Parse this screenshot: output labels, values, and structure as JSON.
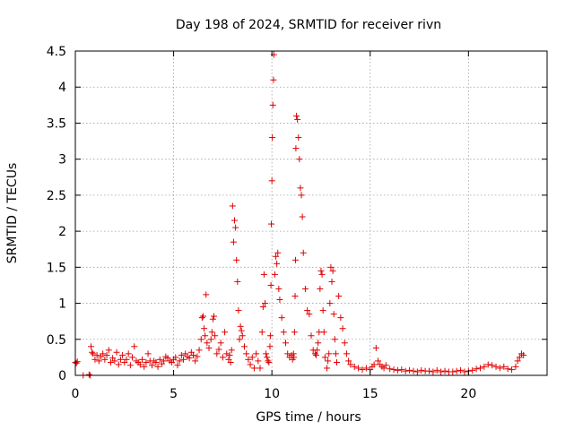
{
  "chart_data": {
    "type": "scatter",
    "title": "Day 198 of 2024, SRMTID for receiver rivn",
    "xlabel": "GPS time / hours",
    "ylabel": "SRMTID / TECUs",
    "xlim": [
      0,
      24
    ],
    "ylim": [
      0,
      4.5
    ],
    "xticks": [
      0,
      5,
      10,
      15,
      20
    ],
    "yticks": [
      0,
      0.5,
      1,
      1.5,
      2,
      2.5,
      3,
      3.5,
      4,
      4.5
    ],
    "xtick_labels": [
      "0",
      "5",
      "10",
      "15",
      "20"
    ],
    "ytick_labels": [
      "0",
      "0.5",
      "1",
      "1.5",
      "2",
      "2.5",
      "3",
      "3.5",
      "4",
      "4.5"
    ],
    "grid": true,
    "marker": "+",
    "color": "#e00000",
    "series": [
      {
        "name": "SRMTID",
        "x": [
          0.0,
          0.05,
          0.1,
          0.4,
          0.7,
          0.75,
          0.8,
          0.85,
          0.9,
          1.0,
          1.1,
          1.2,
          1.3,
          1.4,
          1.5,
          1.6,
          1.7,
          1.8,
          1.9,
          2.0,
          2.1,
          2.2,
          2.3,
          2.4,
          2.5,
          2.6,
          2.7,
          2.8,
          2.9,
          3.0,
          3.1,
          3.2,
          3.3,
          3.4,
          3.5,
          3.6,
          3.7,
          3.8,
          3.9,
          4.0,
          4.1,
          4.2,
          4.3,
          4.4,
          4.5,
          4.6,
          4.7,
          4.8,
          4.9,
          5.0,
          5.1,
          5.2,
          5.3,
          5.4,
          5.5,
          5.6,
          5.7,
          5.8,
          5.9,
          6.0,
          6.1,
          6.2,
          6.3,
          6.4,
          6.45,
          6.5,
          6.55,
          6.6,
          6.65,
          6.7,
          6.8,
          6.9,
          6.95,
          7.0,
          7.05,
          7.1,
          7.2,
          7.3,
          7.4,
          7.5,
          7.6,
          7.7,
          7.8,
          7.85,
          7.9,
          7.95,
          8.0,
          8.05,
          8.1,
          8.15,
          8.2,
          8.25,
          8.3,
          8.35,
          8.4,
          8.45,
          8.5,
          8.6,
          8.7,
          8.8,
          8.9,
          9.0,
          9.1,
          9.2,
          9.3,
          9.4,
          9.5,
          9.55,
          9.6,
          9.65,
          9.7,
          9.75,
          9.8,
          9.85,
          9.9,
          9.92,
          9.95,
          9.97,
          10.0,
          10.02,
          10.05,
          10.08,
          10.1,
          10.15,
          10.2,
          10.25,
          10.3,
          10.35,
          10.4,
          10.5,
          10.6,
          10.7,
          10.8,
          10.9,
          11.0,
          11.05,
          11.1,
          11.12,
          11.15,
          11.18,
          11.2,
          11.22,
          11.25,
          11.3,
          11.35,
          11.4,
          11.45,
          11.5,
          11.55,
          11.6,
          11.7,
          11.8,
          11.9,
          12.0,
          12.1,
          12.2,
          12.25,
          12.3,
          12.35,
          12.4,
          12.45,
          12.5,
          12.55,
          12.6,
          12.65,
          12.7,
          12.8,
          12.85,
          12.9,
          12.95,
          13.0,
          13.05,
          13.1,
          13.15,
          13.2,
          13.25,
          13.3,
          13.4,
          13.5,
          13.6,
          13.7,
          13.8,
          13.9,
          14.0,
          14.2,
          14.4,
          14.6,
          14.8,
          15.0,
          15.1,
          15.2,
          15.3,
          15.4,
          15.5,
          15.6,
          15.7,
          15.8,
          16.0,
          16.2,
          16.4,
          16.6,
          16.8,
          17.0,
          17.2,
          17.4,
          17.6,
          17.8,
          18.0,
          18.2,
          18.4,
          18.6,
          18.8,
          19.0,
          19.2,
          19.4,
          19.6,
          19.8,
          20.0,
          20.2,
          20.4,
          20.6,
          20.8,
          21.0,
          21.2,
          21.4,
          21.6,
          21.8,
          22.0,
          22.2,
          22.4,
          22.5,
          22.6,
          22.7,
          22.8
        ],
        "y": [
          0.18,
          0.17,
          0.19,
          0.0,
          0.01,
          0.0,
          0.4,
          0.32,
          0.3,
          0.22,
          0.28,
          0.2,
          0.26,
          0.3,
          0.22,
          0.28,
          0.35,
          0.18,
          0.24,
          0.2,
          0.32,
          0.15,
          0.22,
          0.28,
          0.18,
          0.22,
          0.3,
          0.14,
          0.25,
          0.4,
          0.2,
          0.18,
          0.15,
          0.22,
          0.12,
          0.18,
          0.3,
          0.2,
          0.14,
          0.2,
          0.18,
          0.12,
          0.22,
          0.16,
          0.2,
          0.26,
          0.24,
          0.2,
          0.18,
          0.22,
          0.25,
          0.14,
          0.2,
          0.28,
          0.22,
          0.3,
          0.26,
          0.24,
          0.32,
          0.28,
          0.2,
          0.26,
          0.35,
          0.5,
          0.8,
          0.82,
          0.65,
          0.55,
          1.12,
          0.45,
          0.38,
          0.5,
          0.6,
          0.78,
          0.82,
          0.55,
          0.3,
          0.36,
          0.45,
          0.25,
          0.6,
          0.3,
          0.22,
          0.28,
          0.18,
          0.35,
          2.35,
          1.85,
          2.15,
          2.05,
          1.6,
          1.3,
          0.9,
          0.5,
          0.68,
          0.62,
          0.55,
          0.4,
          0.3,
          0.22,
          0.15,
          0.25,
          0.1,
          0.3,
          0.2,
          0.1,
          0.6,
          0.95,
          1.4,
          1.0,
          0.3,
          0.25,
          0.2,
          0.18,
          0.4,
          0.55,
          1.25,
          2.1,
          2.7,
          3.3,
          3.75,
          4.1,
          4.45,
          1.4,
          1.65,
          1.55,
          1.7,
          1.2,
          1.05,
          0.8,
          0.6,
          0.45,
          0.3,
          0.25,
          0.28,
          0.22,
          0.3,
          0.25,
          0.6,
          1.1,
          1.6,
          3.15,
          3.6,
          3.55,
          3.3,
          3.0,
          2.6,
          2.5,
          2.2,
          1.7,
          1.2,
          0.9,
          0.85,
          0.55,
          0.35,
          0.3,
          0.28,
          0.35,
          0.45,
          0.6,
          1.2,
          1.45,
          1.4,
          0.9,
          0.6,
          0.25,
          0.1,
          0.2,
          0.3,
          1.0,
          1.5,
          1.3,
          1.45,
          0.85,
          0.5,
          0.3,
          0.18,
          1.1,
          0.8,
          0.65,
          0.45,
          0.3,
          0.2,
          0.15,
          0.12,
          0.1,
          0.08,
          0.1,
          0.08,
          0.12,
          0.15,
          0.38,
          0.2,
          0.15,
          0.12,
          0.1,
          0.14,
          0.09,
          0.08,
          0.07,
          0.08,
          0.06,
          0.07,
          0.06,
          0.05,
          0.07,
          0.06,
          0.06,
          0.05,
          0.07,
          0.05,
          0.06,
          0.05,
          0.05,
          0.06,
          0.07,
          0.05,
          0.06,
          0.07,
          0.09,
          0.1,
          0.12,
          0.15,
          0.14,
          0.12,
          0.1,
          0.12,
          0.09,
          0.08,
          0.12,
          0.2,
          0.25,
          0.3,
          0.28
        ]
      }
    ]
  }
}
